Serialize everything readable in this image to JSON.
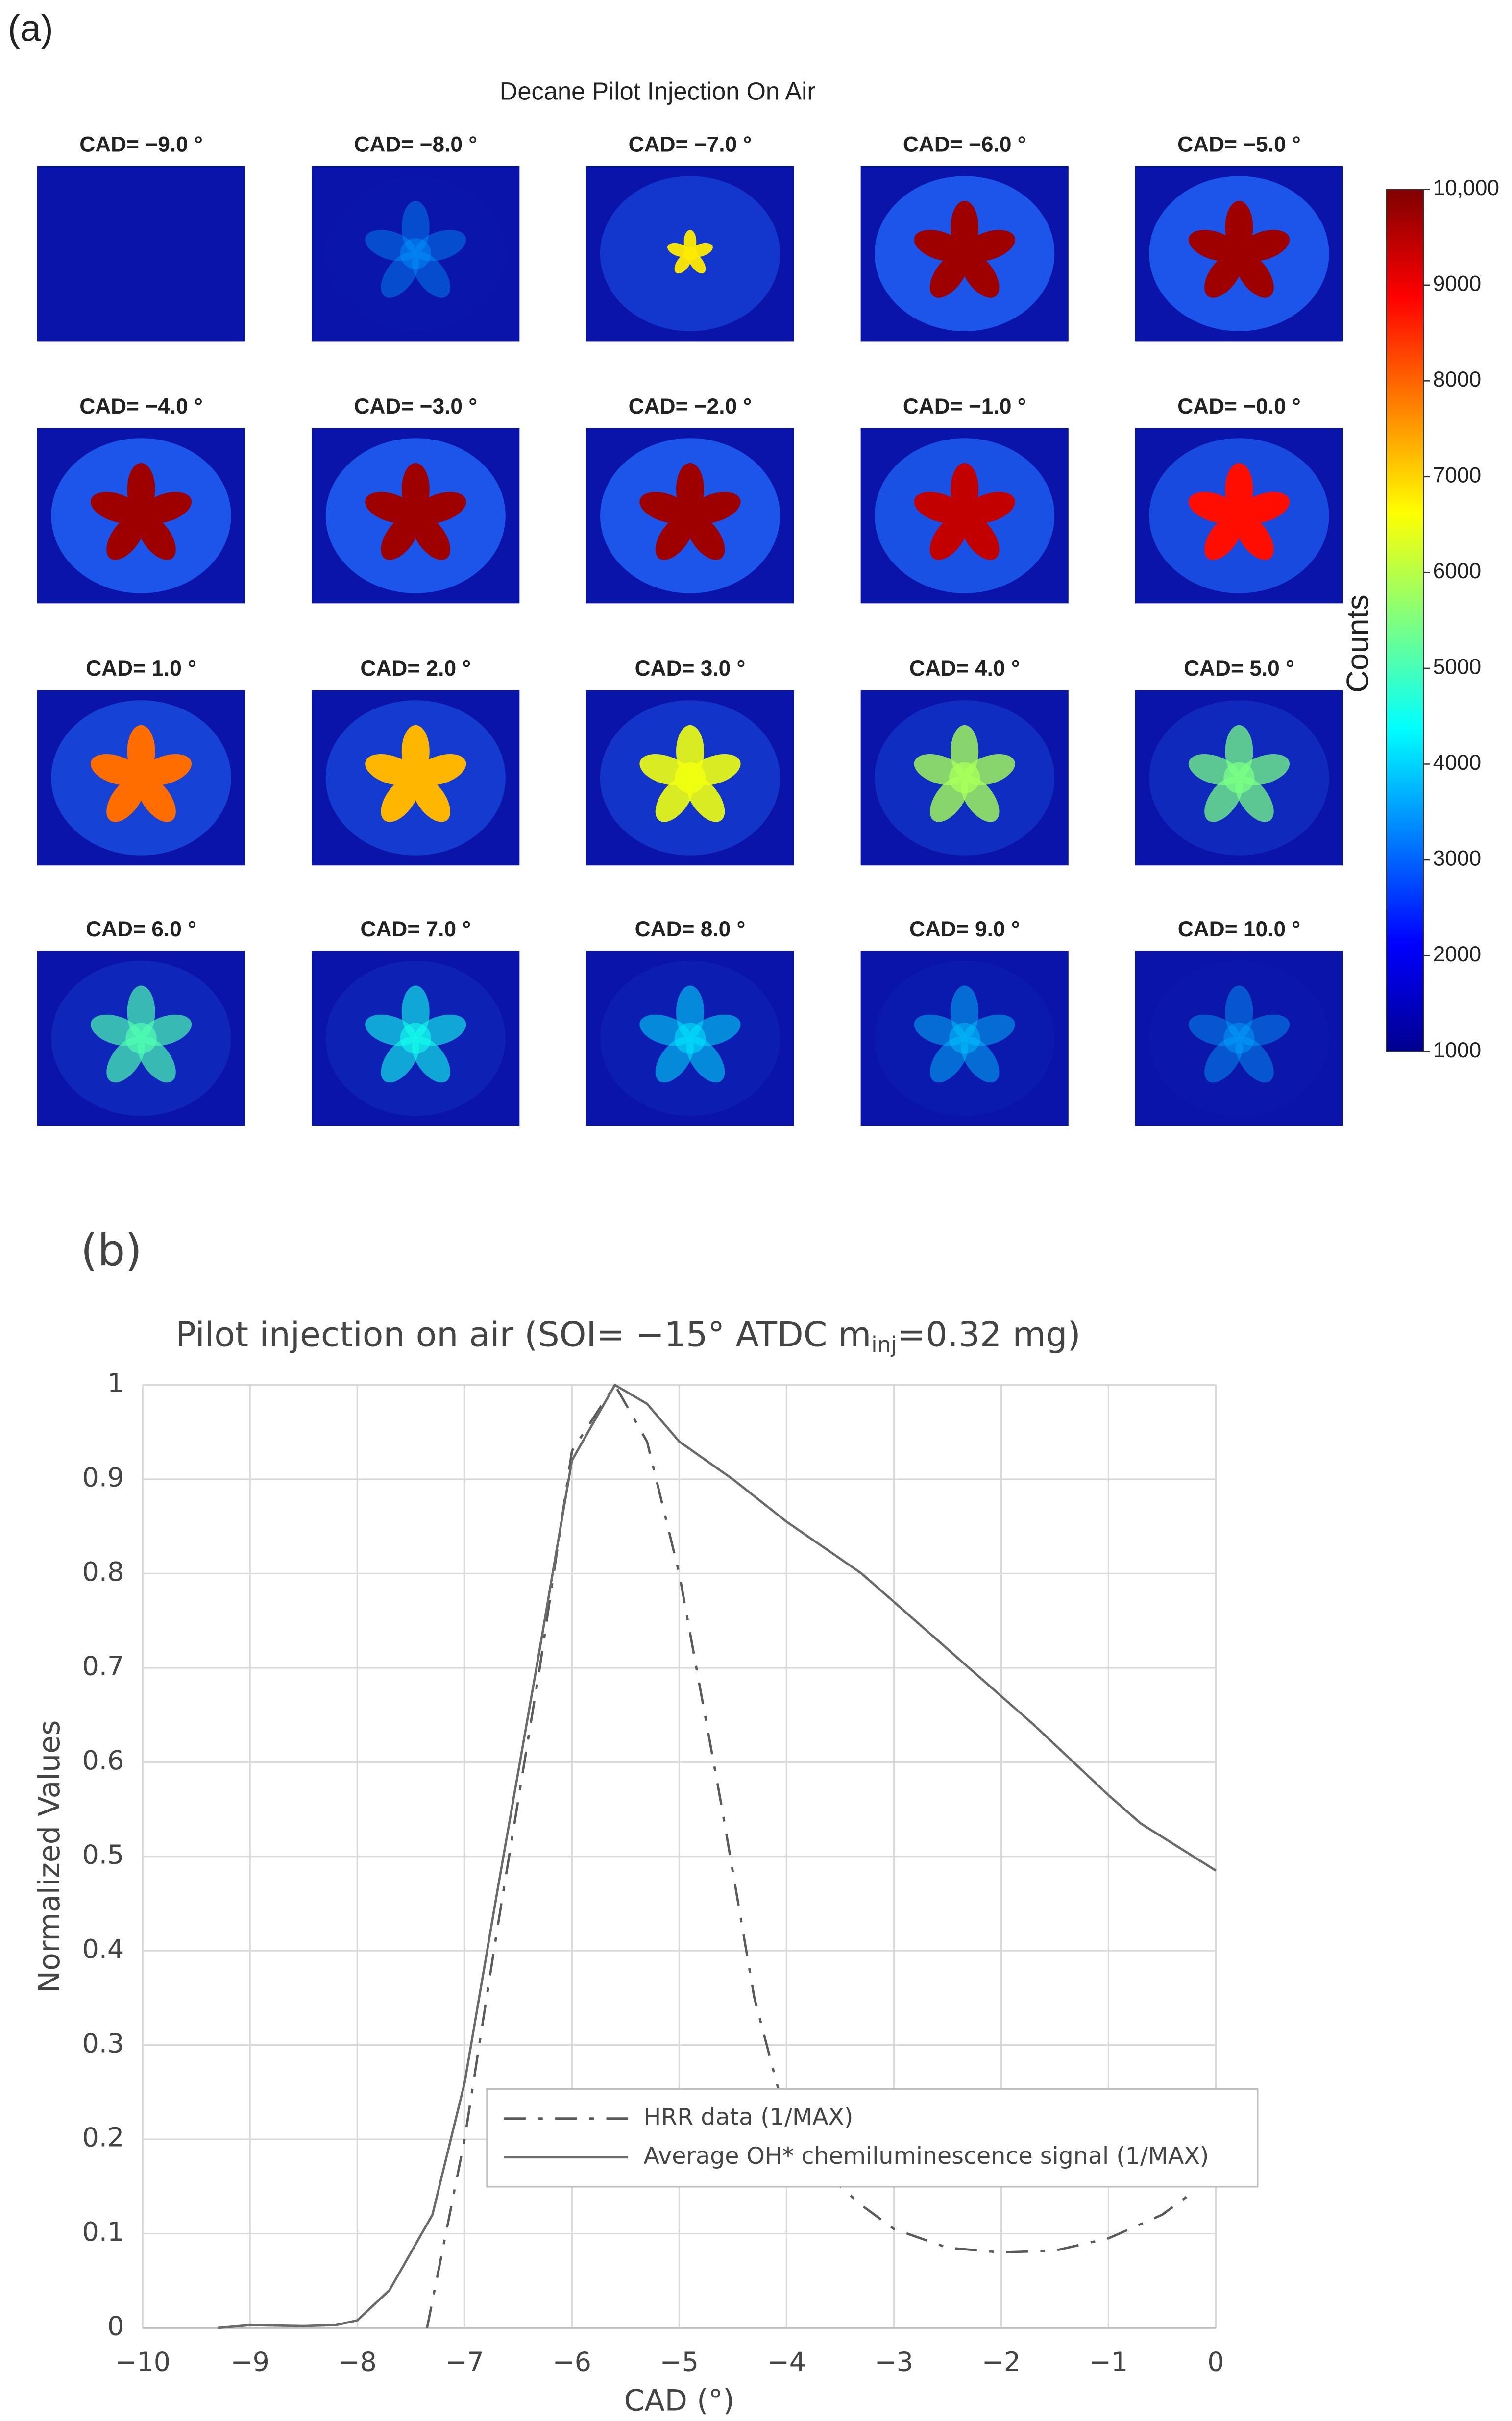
{
  "chart_data": [
    {
      "type": "image-grid",
      "panel_label": "(a)",
      "title": "Decane Pilot Injection On Air",
      "frame_labels": [
        "CAD= −9.0 °",
        "CAD= −8.0 °",
        "CAD= −7.0 °",
        "CAD= −6.0 °",
        "CAD= −5.0 °",
        "CAD= −4.0 °",
        "CAD= −3.0 °",
        "CAD= −2.0 °",
        "CAD= −1.0 °",
        "CAD= −0.0 °",
        "CAD= 1.0 °",
        "CAD= 2.0 °",
        "CAD= 3.0 °",
        "CAD= 4.0 °",
        "CAD= 5.0 °",
        "CAD= 6.0 °",
        "CAD= 7.0 °",
        "CAD= 8.0 °",
        "CAD= 9.0 °",
        "CAD= 10.0 °"
      ],
      "colorbar": {
        "label": "Counts",
        "lim": [
          1000,
          10000
        ],
        "ticks": [
          1000,
          2000,
          3000,
          4000,
          5000,
          6000,
          7000,
          8000,
          9000,
          {
            "value": 10000,
            "label": "10,000"
          }
        ]
      }
    },
    {
      "type": "line",
      "panel_label": "(b)",
      "title": [
        "Pilot injection on air (SOI= −15° ATDC m",
        "inj",
        "=0.32 mg)"
      ],
      "xlabel": "CAD (°)",
      "ylabel": "Normalized Values",
      "xlim": [
        -10,
        0
      ],
      "xticks": [
        {
          "value": -10,
          "label": "−10"
        },
        {
          "value": -9,
          "label": "−9"
        },
        {
          "value": -8,
          "label": "−8"
        },
        {
          "value": -7,
          "label": "−7"
        },
        {
          "value": -6,
          "label": "−6"
        },
        {
          "value": -5,
          "label": "−5"
        },
        {
          "value": -4,
          "label": "−4"
        },
        {
          "value": -3,
          "label": "−3"
        },
        {
          "value": -2,
          "label": "−2"
        },
        {
          "value": -1,
          "label": "−1"
        },
        0
      ],
      "ylim": [
        0,
        1
      ],
      "yticks": [
        0,
        0.1,
        0.2,
        0.3,
        0.4,
        0.5,
        0.6,
        0.7,
        0.8,
        0.9,
        1
      ],
      "grid": true,
      "legend": "lower right",
      "series": [
        {
          "name": "HRR data (1/MAX)",
          "color": "#5a5a5a",
          "dash": "14,8,3,8",
          "x": [
            -7.35,
            -7,
            -6.7,
            -6.3,
            -6,
            -5.6,
            -5.3,
            -5,
            -4.6,
            -4.3,
            -4,
            -3.6,
            -3.3,
            -3,
            -2.5,
            -2,
            -1.5,
            -1,
            -0.5,
            -0.2
          ],
          "values": [
            0,
            0.2,
            0.42,
            0.7,
            0.93,
            1.0,
            0.94,
            0.8,
            0.55,
            0.35,
            0.22,
            0.16,
            0.13,
            0.105,
            0.085,
            0.08,
            0.082,
            0.095,
            0.12,
            0.145
          ]
        },
        {
          "name": "Average OH* chemiluminescence signal (1/MAX)",
          "color": "#6a6a6a",
          "dash": "none",
          "x": [
            -9.3,
            -9,
            -8.5,
            -8.2,
            -8,
            -7.7,
            -7.3,
            -7,
            -6.7,
            -6.3,
            -6,
            -5.6,
            -5.3,
            -5,
            -4.5,
            -4,
            -3.3,
            -2.5,
            -1.7,
            -1,
            -0.7,
            0
          ],
          "values": [
            0,
            0.003,
            0.002,
            0.003,
            0.008,
            0.04,
            0.12,
            0.26,
            0.46,
            0.72,
            0.92,
            1.0,
            0.98,
            0.94,
            0.9,
            0.855,
            0.8,
            0.72,
            0.64,
            0.565,
            0.535,
            0.485
          ]
        }
      ]
    }
  ]
}
